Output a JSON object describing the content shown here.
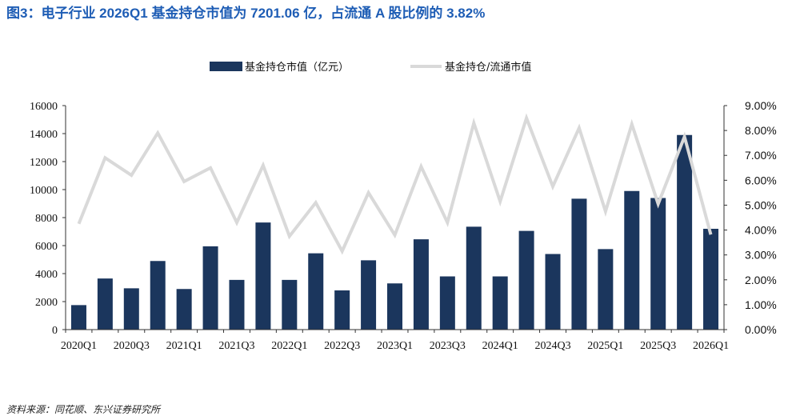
{
  "title": "图3：电子行业 2026Q1 基金持仓市值为 7201.06 亿，占流通 A 股比例的 3.82%",
  "source": "资料来源：同花顺、东兴证券研究所",
  "colors": {
    "bar": "#1b365d",
    "line": "#d9d9d9",
    "title": "#1e5db5"
  },
  "chart_data": {
    "type": "bar+line",
    "legend": [
      "基金持仓市值（亿元）",
      "基金持仓/流通市值"
    ],
    "legend_placement": "top-center",
    "grid": false,
    "categories": [
      "2020Q1",
      "2020Q2",
      "2020Q3",
      "2020Q4",
      "2021Q1",
      "2021Q2",
      "2021Q3",
      "2021Q4",
      "2022Q1",
      "2022Q2",
      "2022Q3",
      "2022Q4",
      "2023Q1",
      "2023Q2",
      "2023Q3",
      "2023Q4",
      "2024Q1",
      "2024Q2",
      "2024Q3",
      "2024Q4",
      "2025Q1",
      "2025Q2",
      "2025Q3",
      "2025Q4",
      "2026Q1"
    ],
    "x_tick_labels": [
      "2020Q1",
      "2020Q3",
      "2021Q1",
      "2021Q3",
      "2022Q1",
      "2022Q3",
      "2023Q1",
      "2023Q3",
      "2024Q1",
      "2024Q3",
      "2025Q1",
      "2025Q3",
      "2026Q1"
    ],
    "series": [
      {
        "name": "基金持仓市值（亿元）",
        "type": "bar",
        "axis": "left",
        "values": [
          1750,
          3650,
          2950,
          4900,
          2900,
          5950,
          3550,
          7650,
          3550,
          5450,
          2800,
          4950,
          3300,
          6450,
          3800,
          7350,
          3800,
          7050,
          5400,
          9350,
          5750,
          9900,
          9400,
          13900,
          7201.06
        ]
      },
      {
        "name": "基金持仓/流通市值",
        "type": "line",
        "axis": "right",
        "values": [
          4.25,
          6.9,
          6.2,
          7.9,
          5.95,
          6.5,
          4.3,
          6.6,
          3.75,
          5.1,
          3.15,
          5.5,
          3.8,
          6.55,
          4.3,
          8.3,
          5.15,
          8.5,
          5.75,
          8.1,
          4.75,
          8.25,
          5.05,
          7.75,
          3.82
        ]
      }
    ],
    "ylim_left": [
      0,
      16000
    ],
    "yticks_left": [
      "0",
      "2000",
      "4000",
      "6000",
      "8000",
      "10000",
      "12000",
      "14000",
      "16000"
    ],
    "ylim_right": [
      0,
      9
    ],
    "yticks_right": [
      "0.00%",
      "1.00%",
      "2.00%",
      "3.00%",
      "4.00%",
      "5.00%",
      "6.00%",
      "7.00%",
      "8.00%",
      "9.00%"
    ]
  }
}
